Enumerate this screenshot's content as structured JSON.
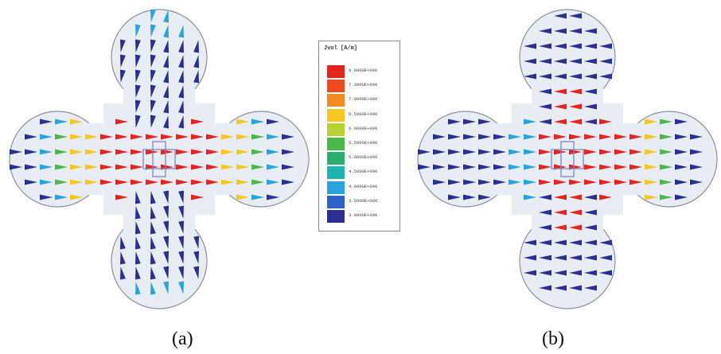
{
  "panels": [
    {
      "id": "a",
      "caption": "(a)"
    },
    {
      "id": "b",
      "caption": "(b)"
    }
  ],
  "legend": {
    "title": "Jvol [A/m]",
    "entries": [
      {
        "label": "8.0000E+000",
        "color": "#e52420"
      },
      {
        "label": "7.3000E+000",
        "color": "#ee4a1e"
      },
      {
        "label": "7.0000E+000",
        "color": "#f28a22"
      },
      {
        "label": "6.5000E+000",
        "color": "#f6c723"
      },
      {
        "label": "6.0000E+000",
        "color": "#b8d233"
      },
      {
        "label": "5.5000E+000",
        "color": "#4db848"
      },
      {
        "label": "5.0000E+000",
        "color": "#2aae6d"
      },
      {
        "label": "4.5000E+000",
        "color": "#1fb3b3"
      },
      {
        "label": "4.0000E+000",
        "color": "#2aa4de"
      },
      {
        "label": "3.5000E+000",
        "color": "#2f62c8"
      },
      {
        "label": "3.0000E+000",
        "color": "#2b2f94"
      }
    ]
  },
  "colors": {
    "low": "#2b2f94",
    "mid_low": "#2aa4de",
    "mid": "#4db848",
    "mid_high": "#f6c723",
    "high": "#e52420",
    "antenna_fill": "#e8ecf3",
    "antenna_edge": "#8c8f99",
    "feed": "#7a88c8"
  }
}
